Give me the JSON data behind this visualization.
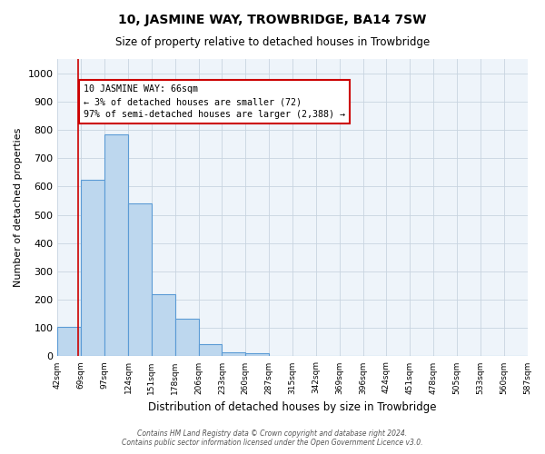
{
  "title": "10, JASMINE WAY, TROWBRIDGE, BA14 7SW",
  "subtitle": "Size of property relative to detached houses in Trowbridge",
  "xlabel": "Distribution of detached houses by size in Trowbridge",
  "ylabel": "Number of detached properties",
  "bar_values": [
    103,
    625,
    785,
    540,
    220,
    133,
    42,
    15,
    10,
    0,
    0,
    0,
    0,
    0,
    0,
    0,
    0,
    0,
    0,
    0
  ],
  "bin_edges": [
    42,
    69,
    96,
    123,
    150,
    177,
    204,
    231,
    258,
    285,
    312,
    339,
    366,
    393,
    420,
    447,
    474,
    501,
    528,
    555,
    582
  ],
  "xtick_labels": [
    "42sqm",
    "69sqm",
    "97sqm",
    "124sqm",
    "151sqm",
    "178sqm",
    "206sqm",
    "233sqm",
    "260sqm",
    "287sqm",
    "315sqm",
    "342sqm",
    "369sqm",
    "396sqm",
    "424sqm",
    "451sqm",
    "478sqm",
    "505sqm",
    "533sqm",
    "560sqm",
    "587sqm"
  ],
  "ylim": [
    0,
    1050
  ],
  "yticks": [
    0,
    100,
    200,
    300,
    400,
    500,
    600,
    700,
    800,
    900,
    1000
  ],
  "bar_color": "#BDD7EE",
  "bar_edge_color": "#5B9BD5",
  "property_line_x": 66,
  "property_line_color": "#CC0000",
  "annotation_text": "10 JASMINE WAY: 66sqm\n← 3% of detached houses are smaller (72)\n97% of semi-detached houses are larger (2,388) →",
  "annotation_box_color": "#CC0000",
  "footer_line1": "Contains HM Land Registry data © Crown copyright and database right 2024.",
  "footer_line2": "Contains public sector information licensed under the Open Government Licence v3.0.",
  "background_color": "#FFFFFF",
  "grid_color": "#C8D4E0"
}
